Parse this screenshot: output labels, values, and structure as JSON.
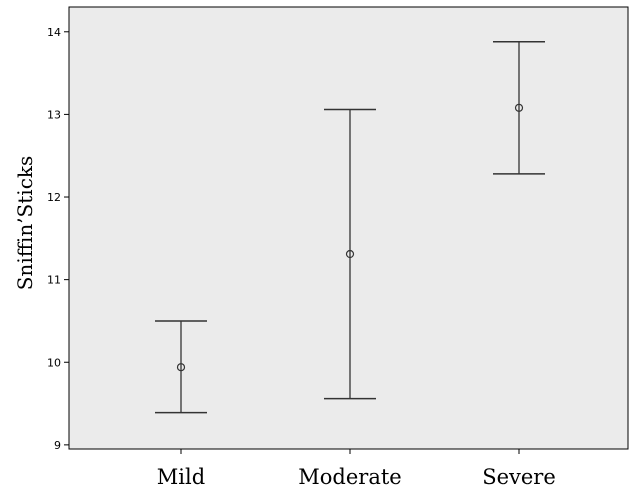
{
  "chart_data": {
    "type": "errorbar",
    "title": "",
    "xlabel": "",
    "ylabel": "Sniffin’Sticks",
    "ylim": [
      8.95,
      14.3
    ],
    "yticks": [
      9,
      10,
      11,
      12,
      13,
      14
    ],
    "grid": false,
    "categories": [
      "Mild",
      "Moderate",
      "Severe"
    ],
    "series": [
      {
        "mean": [
          9.94,
          11.31,
          13.08
        ],
        "lower": [
          9.39,
          9.56,
          12.28
        ],
        "upper": [
          10.5,
          13.06,
          13.88
        ]
      }
    ],
    "colors": {
      "plot_background": "#ebebeb",
      "marks": "#333333"
    }
  }
}
